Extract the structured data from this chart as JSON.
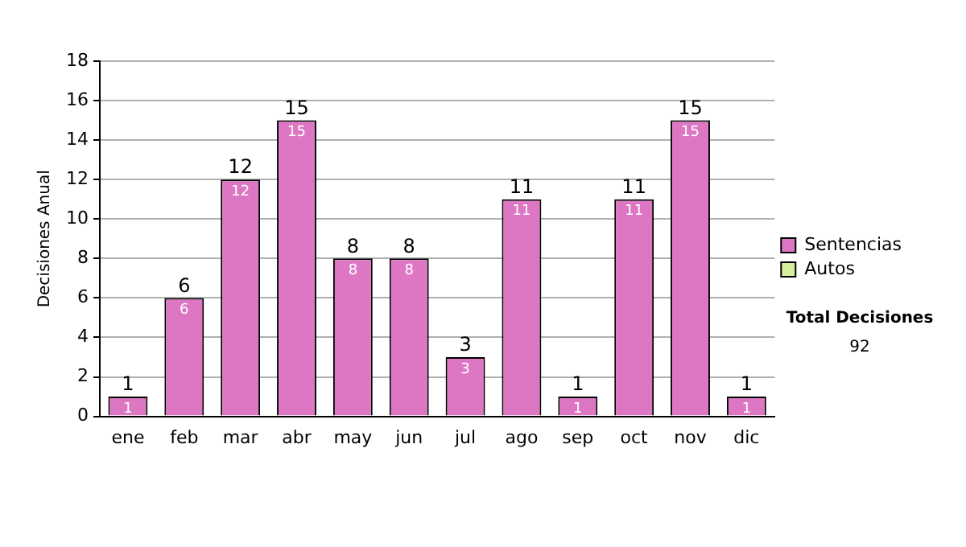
{
  "chart_data": {
    "type": "bar",
    "ylabel": "Decisiones Anual",
    "categories": [
      "ene",
      "feb",
      "mar",
      "abr",
      "may",
      "jun",
      "jul",
      "ago",
      "sep",
      "oct",
      "nov",
      "dic"
    ],
    "series": [
      {
        "name": "Sentencias",
        "color": "#dd77c4",
        "values": [
          1,
          6,
          12,
          15,
          8,
          8,
          3,
          11,
          1,
          11,
          15,
          1
        ]
      },
      {
        "name": "Autos",
        "color": "#d6ee9c",
        "values": [
          null,
          null,
          null,
          null,
          null,
          null,
          null,
          null,
          null,
          null,
          null,
          null
        ]
      }
    ],
    "stacked": true,
    "totals": [
      "1",
      "6",
      "12",
      "15",
      "8",
      "8",
      "3",
      "11",
      "1",
      "11",
      "15",
      "1"
    ],
    "data_labels": true,
    "ylim": [
      0,
      18
    ],
    "yticks": [
      0,
      2,
      4,
      6,
      8,
      10,
      12,
      14,
      16,
      18
    ],
    "grid": "y",
    "legend": "right",
    "annotations": [
      "Total Decisiones",
      "92"
    ]
  }
}
